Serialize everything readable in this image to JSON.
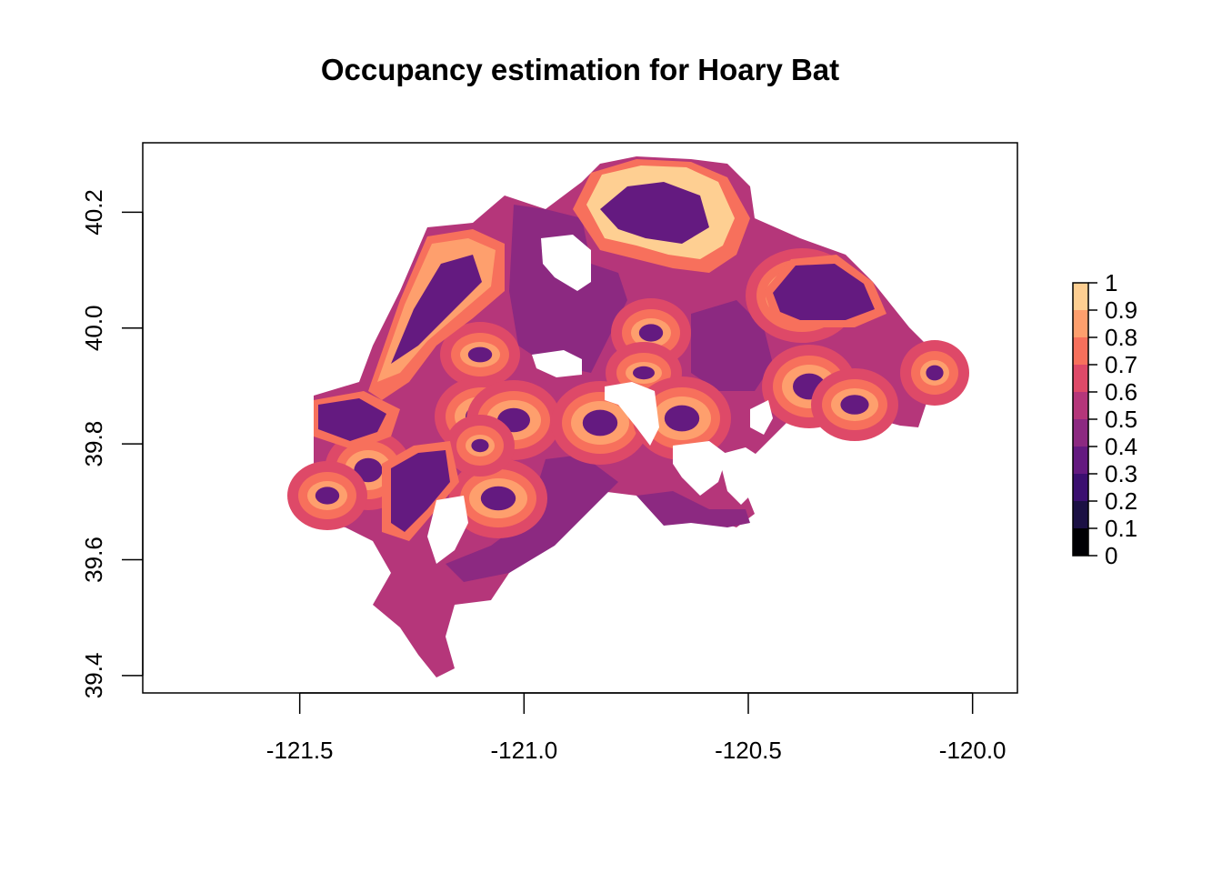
{
  "title": "Occupancy estimation for Hoary Bat",
  "x_axis": {
    "ticks": [
      -121.5,
      -121.0,
      -120.5,
      -120.0
    ],
    "tick_labels": [
      "-121.5",
      "-121.0",
      "-120.5",
      "-120.0"
    ],
    "range": [
      -121.85,
      -119.9
    ]
  },
  "y_axis": {
    "ticks": [
      39.4,
      39.6,
      39.8,
      40.0,
      40.2
    ],
    "tick_labels": [
      "39.4",
      "39.6",
      "39.8",
      "40.0",
      "40.2"
    ],
    "range": [
      39.37,
      40.32
    ]
  },
  "legend": {
    "breaks": [
      "0",
      "0.1",
      "0.2",
      "0.3",
      "0.4",
      "0.5",
      "0.6",
      "0.7",
      "0.8",
      "0.9",
      "1"
    ],
    "colors": [
      "#000004",
      "#1b1044",
      "#3b0f70",
      "#641a80",
      "#8c2981",
      "#b5367a",
      "#de4968",
      "#f7705c",
      "#fe9f6d",
      "#fecf92",
      "#fcfdbf"
    ],
    "placement": "right"
  },
  "map_colors": {
    "low": "#8c2981",
    "mid": "#b5367a",
    "mid_high": "#de4968",
    "high": "#f7705c",
    "very_high": "#fe9f6d",
    "peak": "#fecf92",
    "dark": "#641a80"
  }
}
